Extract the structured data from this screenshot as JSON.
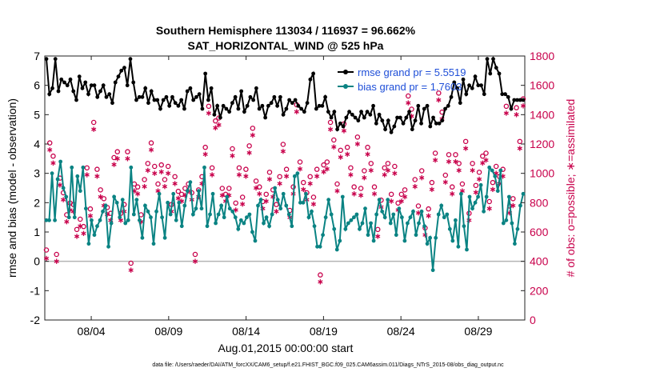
{
  "chart_data": {
    "type": "line",
    "title": "Southern Hemisphere 113034 / 116937 = 96.662%",
    "subtitle": "SAT_HORIZONTAL_WIND @ 525 hPa",
    "xlabel": "Aug.01,2015 00:00:00 start",
    "ylabel": "rmse and bias (model - observation)",
    "ylabel_right": "# of obs: o=possible; ∗=assimilated",
    "footnote": "data file: /Users/raeder/DAI/ATM_forcXX/CAM6_setup/f.e21.FHIST_BGC.f09_025.CAM6assim.011/Diags_NTrS_2015-08/obs_diag_output.nc",
    "x_ticks": [
      "08/04",
      "08/09",
      "08/14",
      "08/19",
      "08/24",
      "08/29"
    ],
    "x_tick_days": [
      4,
      9,
      14,
      19,
      24,
      29
    ],
    "xlim_days": [
      1,
      32
    ],
    "ylim": [
      -2,
      7
    ],
    "y_ticks": [
      "-2",
      "-1",
      "0",
      "1",
      "2",
      "3",
      "4",
      "5",
      "6",
      "7"
    ],
    "ylim_right": [
      0,
      1800
    ],
    "y_ticks_right": [
      "0",
      "200",
      "400",
      "600",
      "800",
      "1000",
      "1200",
      "1400",
      "1600",
      "1800"
    ],
    "grid": false,
    "legend_position": "top-right",
    "colors": {
      "rmse": "#000000",
      "bias": "#0a8383",
      "obs": "#c8004b",
      "zero_line": "#b4b4b4"
    },
    "series": [
      {
        "name": "rmse grand pr = 5.5519",
        "axis": "left",
        "marker": "filled-circle",
        "values": [
          6.9,
          5.7,
          5.9,
          6.9,
          5.8,
          6.2,
          6.1,
          6.0,
          6.2,
          5.8,
          5.5,
          6.3,
          5.9,
          6.1,
          5.7,
          6.0,
          6.0,
          5.6,
          5.8,
          6.0,
          5.6,
          5.7,
          5.4,
          6.1,
          6.3,
          6.5,
          6.6,
          6.0,
          6.9,
          6.1,
          5.5,
          5.6,
          5.6,
          5.9,
          5.4,
          5.8,
          5.5,
          5.5,
          5.2,
          5.5,
          5.6,
          5.3,
          5.6,
          5.4,
          5.3,
          5.5,
          5.2,
          5.8,
          5.9,
          5.5,
          5.6,
          5.7,
          5.2,
          6.4,
          5.5,
          5.9,
          5.0,
          5.3,
          4.9,
          5.3,
          5.2,
          5.1,
          5.4,
          5.6,
          5.2,
          5.8,
          5.1,
          5.3,
          5.6,
          5.5,
          5.9,
          5.2,
          5.3,
          4.9,
          5.3,
          5.4,
          5.6,
          5.3,
          5.6,
          5.0,
          5.2,
          5.5,
          5.4,
          5.5,
          5.3,
          5.2,
          5.1,
          5.4,
          6.2,
          6.4,
          5.2,
          5.3,
          5.3,
          5.6,
          5.1,
          4.9,
          5.1,
          4.5,
          4.7,
          4.6,
          4.9,
          5.1,
          5.0,
          4.9,
          4.8,
          5.1,
          4.9,
          5.1,
          5.0,
          5.3,
          4.7,
          5.0,
          4.8,
          4.5,
          4.8,
          4.4,
          4.6,
          4.9,
          4.9,
          4.7,
          4.9,
          5.1,
          4.5,
          4.8,
          5.3,
          4.7,
          5.2,
          5.3,
          4.6,
          4.9,
          4.7,
          4.7,
          4.8,
          5.2,
          5.3,
          5.6,
          6.1,
          5.9,
          5.4,
          6.2,
          5.7,
          6.0,
          5.9,
          6.3,
          6.0,
          6.0,
          5.7,
          6.9,
          6.4,
          6.9,
          6.6,
          6.4,
          5.7,
          5.7,
          5.6,
          5.2,
          5.5,
          5.5,
          5.5,
          5.5
        ]
      },
      {
        "name": "bias grand pr = 1.7603",
        "axis": "left",
        "marker": "filled-circle",
        "values": [
          1.4,
          1.4,
          3.0,
          1.4,
          2.8,
          3.4,
          2.5,
          2.2,
          1.5,
          3.2,
          1.5,
          2.9,
          2.4,
          3.2,
          1.8,
          0.6,
          1.4,
          0.9,
          1.2,
          1.4,
          1.7,
          1.9,
          0.5,
          1.3,
          2.2,
          2.0,
          1.5,
          2.1,
          1.3,
          1.4,
          3.2,
          1.6,
          2.1,
          1.4,
          0.8,
          1.9,
          1.7,
          1.5,
          0.6,
          1.7,
          2.3,
          1.5,
          0.8,
          2.0,
          1.6,
          2.3,
          1.4,
          2.0,
          1.2,
          1.9,
          2.4,
          2.7,
          1.6,
          1.8,
          2.4,
          1.8,
          3.2,
          1.2,
          1.6,
          2.3,
          1.3,
          1.6,
          1.9,
          1.5,
          2.2,
          1.8,
          1.7,
          1.5,
          1.1,
          1.4,
          1.3,
          1.5,
          1.6,
          1.0,
          0.7,
          1.9,
          2.1,
          1.3,
          1.5,
          1.2,
          1.6,
          2.5,
          2.1,
          1.8,
          2.3,
          1.9,
          1.6,
          1.2,
          2.9,
          3.0,
          2.0,
          2.0,
          2.3,
          1.5,
          1.7,
          1.2,
          0.5,
          0.5,
          0.9,
          1.5,
          2.1,
          1.6,
          1.1,
          0.4,
          0.7,
          2.2,
          1.1,
          1.3,
          1.4,
          1.5,
          1.6,
          1.1,
          1.3,
          1.8,
          0.9,
          1.3,
          0.7,
          1.6,
          2.1,
          1.7,
          1.5,
          2.1,
          1.3,
          1.6,
          0.9,
          1.8,
          1.5,
          0.7,
          1.3,
          1.5,
          1.7,
          0.9,
          1.3,
          1.7,
          1.2,
          0.6,
          0.8,
          -0.3,
          0.8,
          1.6,
          1.9,
          1.5,
          1.6,
          1.1,
          0.7,
          1.4,
          0.5,
          2.3,
          1.2,
          0.4,
          2.2,
          1.8,
          2.0,
          2.2,
          2.6,
          1.7,
          2.2,
          3.2,
          3.1,
          2.9,
          2.4,
          3.1,
          1.3,
          1.4,
          2.2,
          1.3,
          0.6,
          1.1,
          1.9,
          2.3
        ]
      },
      {
        "name": "obs possible",
        "axis": "right",
        "marker": "open-circle",
        "values": [
          450,
          1180,
          1090,
          420,
          940,
          840,
          690,
          770,
          760,
          590,
          660,
          610,
          1010,
          730,
          1320,
          1000,
          860,
          800,
          740,
          700,
          1080,
          1120,
          700,
          760,
          1120,
          360,
          900,
          880,
          690,
          930,
          1040,
          1180,
          1020,
          900,
          1030,
          930,
          1020,
          760,
          950,
          850,
          830,
          870,
          900,
          840,
          420,
          860,
          950,
          1150,
          1430,
          1010,
          1330,
          1350,
          870,
          830,
          870,
          1140,
          770,
          1010,
          810,
          1000,
          1160,
          1280,
          920,
          880,
          780,
          830,
          980,
          860,
          760,
          950,
          1170,
          1000,
          720,
          880,
          1440,
          1050,
          910,
          840,
          950,
          810,
          1000,
          280,
          1030,
          1050,
          1320,
          1200,
          900,
          1130,
          1310,
          1150,
          1010,
          880,
          1220,
          870,
          990,
          1150,
          1040,
          880,
          590,
          790,
          1010,
          1040,
          830,
          1020,
          770,
          830,
          860,
          1500,
          1410,
          930,
          750,
          990,
          600,
          730,
          910,
          1110,
          1520,
          1390,
          960,
          1100,
          880,
          1100,
          1040,
          900,
          1190,
          700,
          1040,
          890,
          980,
          1090,
          1110,
          780,
          910,
          1020,
          950,
          1000,
          1430,
          750,
          800,
          1420,
          1190,
          1480
        ]
      },
      {
        "name": "obs assimilated",
        "axis": "right",
        "marker": "asterisk",
        "values": [
          420,
          1160,
          1070,
          400,
          920,
          820,
          670,
          750,
          740,
          570,
          640,
          590,
          990,
          710,
          1300,
          980,
          840,
          780,
          720,
          680,
          1060,
          1100,
          680,
          740,
          1100,
          340,
          880,
          860,
          670,
          910,
          1020,
          1160,
          1000,
          880,
          1010,
          910,
          1000,
          740,
          930,
          830,
          810,
          850,
          880,
          820,
          400,
          840,
          930,
          1130,
          1410,
          990,
          1310,
          1330,
          850,
          810,
          850,
          1120,
          750,
          990,
          790,
          980,
          1140,
          1260,
          900,
          860,
          760,
          810,
          960,
          840,
          740,
          930,
          1150,
          980,
          700,
          860,
          1420,
          1030,
          890,
          820,
          930,
          790,
          980,
          260,
          1010,
          1030,
          1300,
          1180,
          880,
          1110,
          1290,
          1130,
          990,
          860,
          1200,
          850,
          970,
          1130,
          1020,
          860,
          570,
          770,
          990,
          1020,
          810,
          1000,
          750,
          810,
          840,
          1480,
          1390,
          910,
          730,
          970,
          580,
          710,
          890,
          1090,
          1500,
          1370,
          940,
          1080,
          860,
          1080,
          1020,
          880,
          1170,
          680,
          1020,
          870,
          960,
          1070,
          1090,
          760,
          890,
          1000,
          930,
          980,
          1410,
          730,
          780,
          1400,
          1170,
          1460
        ]
      }
    ]
  }
}
